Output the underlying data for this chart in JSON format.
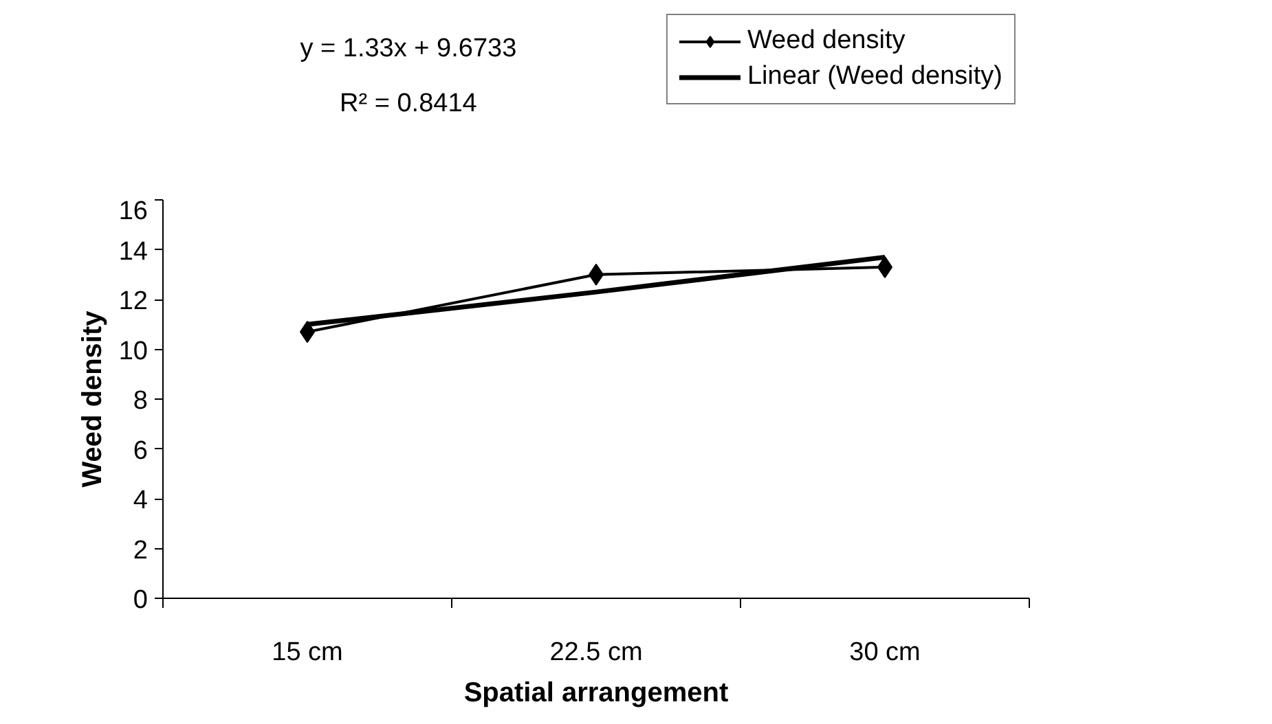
{
  "chart_data": {
    "type": "line",
    "categories": [
      "15 cm",
      "22.5 cm",
      "30 cm"
    ],
    "series": [
      {
        "name": "Weed density",
        "color": "#000000",
        "values": [
          10.7,
          13.0,
          13.3
        ],
        "marker": "diamond"
      },
      {
        "name": "Linear (Weed density)",
        "type": "line",
        "color": "#000000",
        "values": [
          11.0,
          12.3,
          13.7
        ],
        "marker": "none"
      }
    ],
    "xlabel": "Spatial arrangement",
    "ylabel": "Weed density",
    "ylim": [
      0,
      16
    ],
    "yticks": [
      0,
      2,
      4,
      6,
      8,
      10,
      12,
      14,
      16
    ],
    "annotations": [
      "y = 1.33x + 9.6733",
      "R² = 0.8414"
    ],
    "grid": false,
    "legend": "top right",
    "line_style": "solid"
  }
}
